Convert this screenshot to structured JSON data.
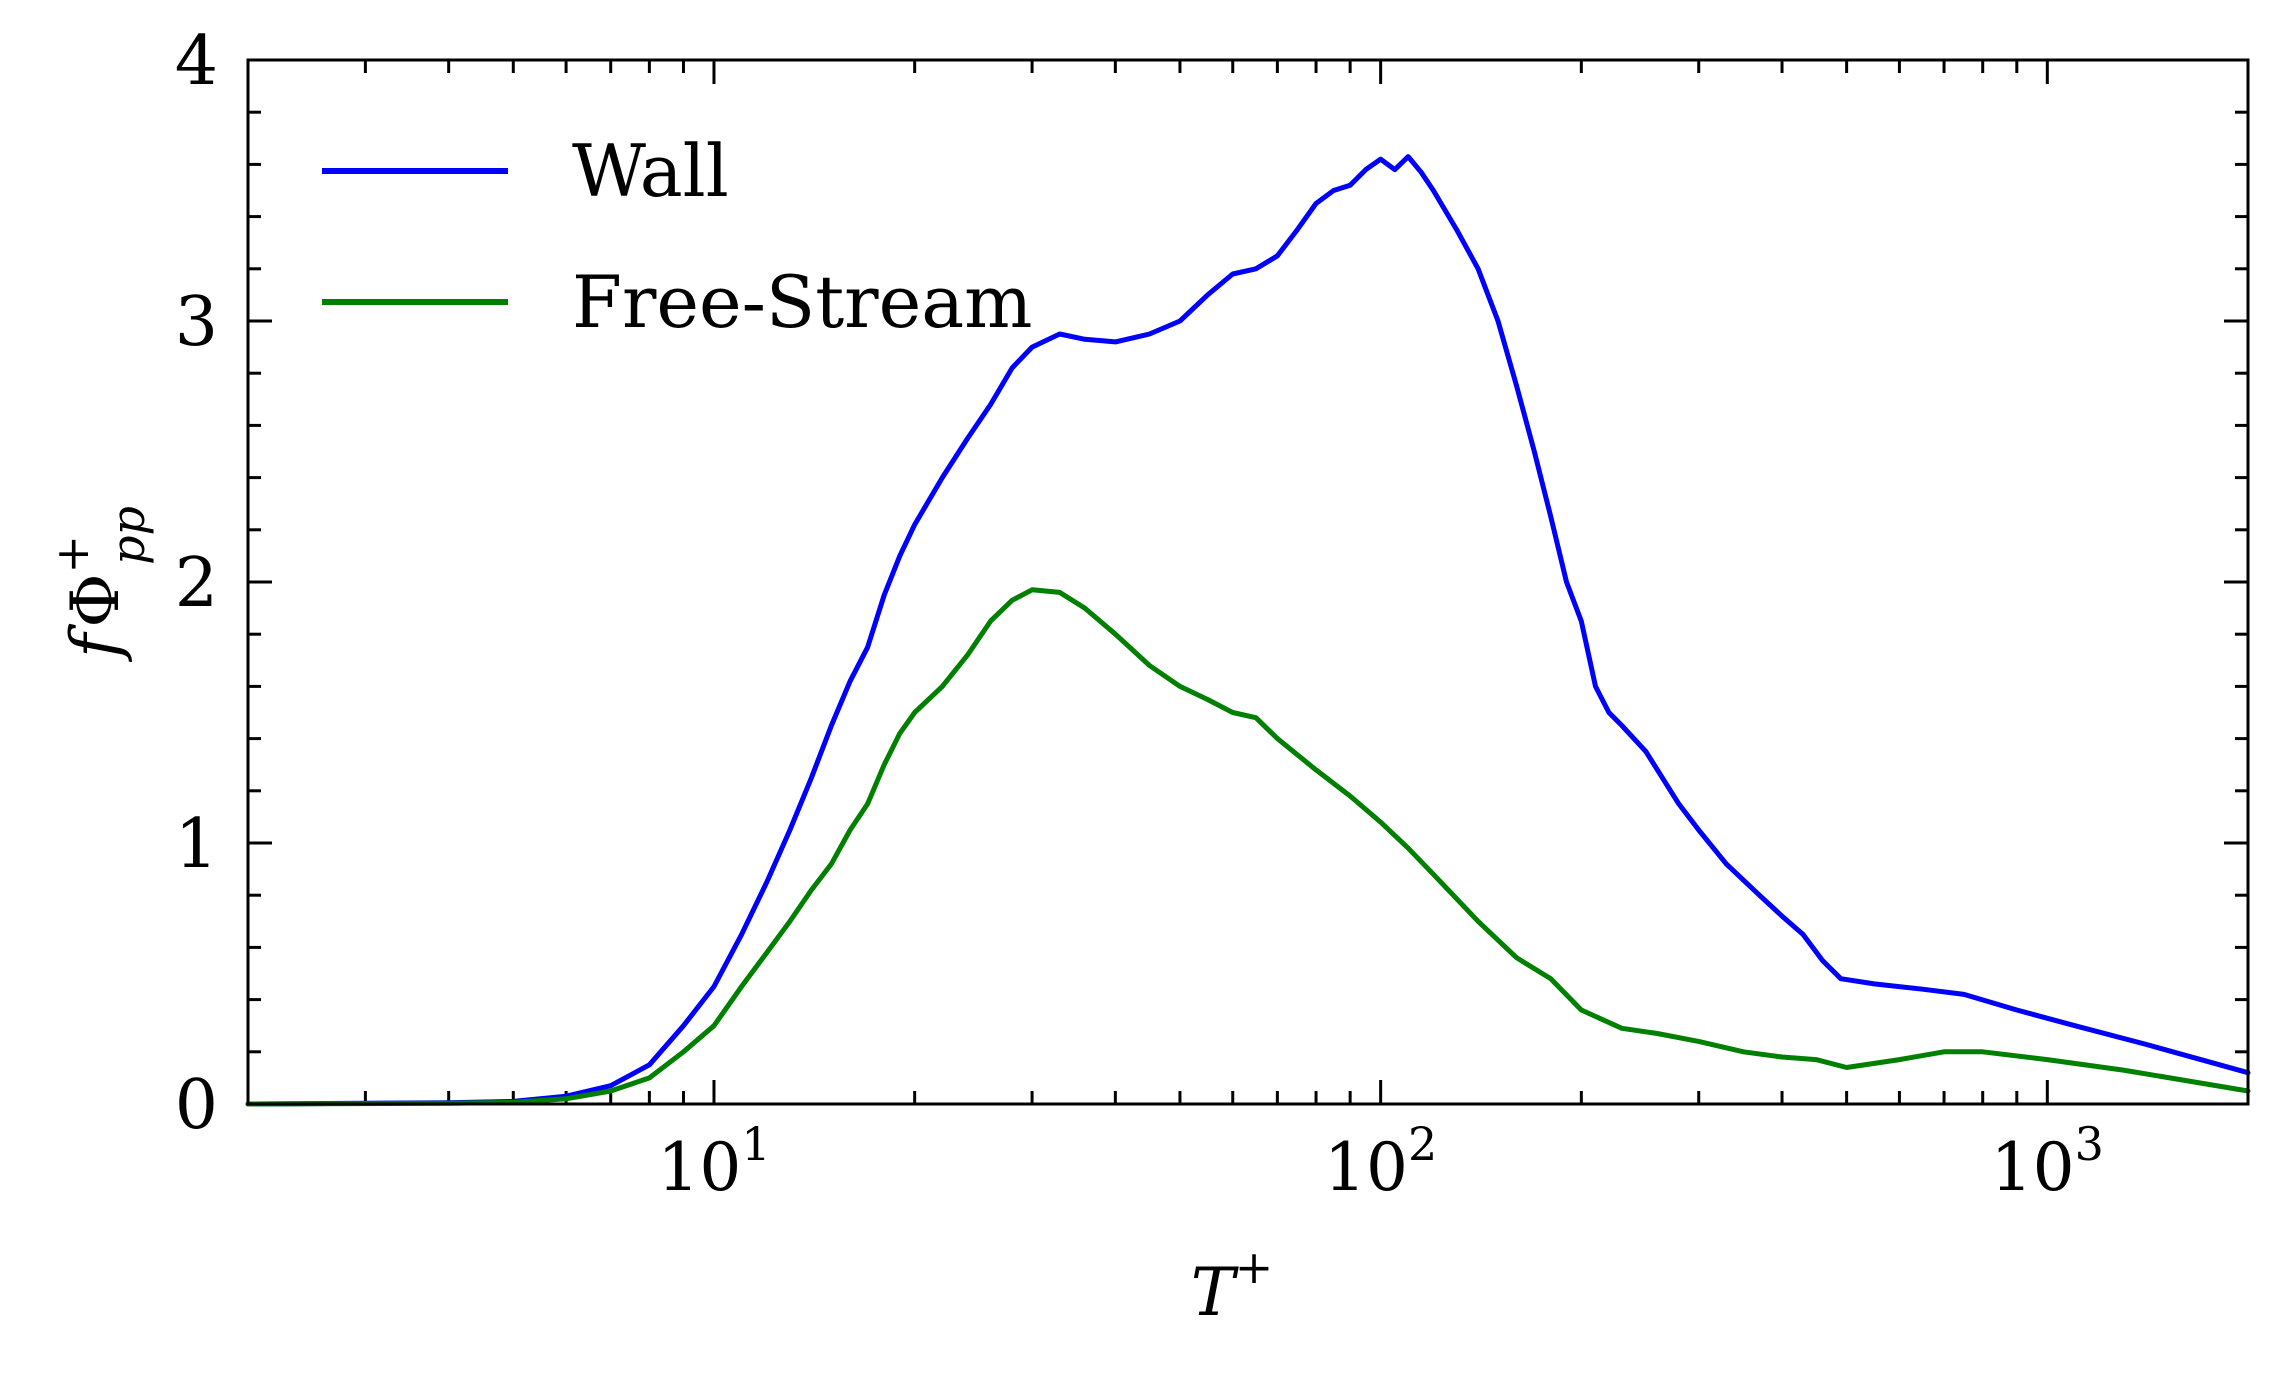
{
  "chart_data": {
    "type": "line",
    "xscale": "log",
    "xlim": [
      2,
      2000
    ],
    "ylim": [
      0,
      4
    ],
    "grid": false,
    "legend_position": "upper-left",
    "x_ticks": [
      {
        "value": 10,
        "base": "10",
        "exp": "1"
      },
      {
        "value": 100,
        "base": "10",
        "exp": "2"
      },
      {
        "value": 1000,
        "base": "10",
        "exp": "3"
      }
    ],
    "y_ticks": [
      0,
      1,
      2,
      3,
      4
    ],
    "xlabel": {
      "main": "T",
      "sup": "+"
    },
    "ylabel": {
      "pre": "f",
      "main": "Φ",
      "sup": "+",
      "sub": "pp"
    },
    "series": [
      {
        "name": "Wall",
        "color": "#0000ff",
        "points": [
          [
            2,
            0
          ],
          [
            4,
            0.005
          ],
          [
            5,
            0.01
          ],
          [
            6,
            0.03
          ],
          [
            7,
            0.07
          ],
          [
            8,
            0.15
          ],
          [
            9,
            0.3
          ],
          [
            10,
            0.45
          ],
          [
            11,
            0.65
          ],
          [
            12,
            0.85
          ],
          [
            13,
            1.05
          ],
          [
            14,
            1.25
          ],
          [
            15,
            1.45
          ],
          [
            16,
            1.62
          ],
          [
            17,
            1.75
          ],
          [
            18,
            1.95
          ],
          [
            19,
            2.1
          ],
          [
            20,
            2.22
          ],
          [
            22,
            2.4
          ],
          [
            24,
            2.55
          ],
          [
            26,
            2.68
          ],
          [
            28,
            2.82
          ],
          [
            30,
            2.9
          ],
          [
            33,
            2.95
          ],
          [
            36,
            2.93
          ],
          [
            40,
            2.92
          ],
          [
            45,
            2.95
          ],
          [
            50,
            3.0
          ],
          [
            55,
            3.1
          ],
          [
            60,
            3.18
          ],
          [
            65,
            3.2
          ],
          [
            70,
            3.25
          ],
          [
            75,
            3.35
          ],
          [
            80,
            3.45
          ],
          [
            85,
            3.5
          ],
          [
            90,
            3.52
          ],
          [
            95,
            3.58
          ],
          [
            100,
            3.62
          ],
          [
            105,
            3.58
          ],
          [
            110,
            3.63
          ],
          [
            115,
            3.57
          ],
          [
            120,
            3.5
          ],
          [
            130,
            3.35
          ],
          [
            140,
            3.2
          ],
          [
            150,
            3.0
          ],
          [
            160,
            2.75
          ],
          [
            170,
            2.5
          ],
          [
            180,
            2.25
          ],
          [
            190,
            2.0
          ],
          [
            200,
            1.85
          ],
          [
            210,
            1.6
          ],
          [
            220,
            1.5
          ],
          [
            230,
            1.45
          ],
          [
            250,
            1.35
          ],
          [
            280,
            1.15
          ],
          [
            300,
            1.05
          ],
          [
            330,
            0.92
          ],
          [
            370,
            0.8
          ],
          [
            400,
            0.72
          ],
          [
            430,
            0.65
          ],
          [
            460,
            0.55
          ],
          [
            490,
            0.48
          ],
          [
            550,
            0.46
          ],
          [
            650,
            0.44
          ],
          [
            750,
            0.42
          ],
          [
            900,
            0.36
          ],
          [
            1100,
            0.3
          ],
          [
            1400,
            0.23
          ],
          [
            2000,
            0.12
          ]
        ]
      },
      {
        "name": "Free-Stream",
        "color": "#008000",
        "points": [
          [
            2,
            0
          ],
          [
            4,
            0.003
          ],
          [
            5,
            0.006
          ],
          [
            6,
            0.02
          ],
          [
            7,
            0.05
          ],
          [
            8,
            0.1
          ],
          [
            9,
            0.2
          ],
          [
            10,
            0.3
          ],
          [
            11,
            0.45
          ],
          [
            12,
            0.58
          ],
          [
            13,
            0.7
          ],
          [
            14,
            0.82
          ],
          [
            15,
            0.92
          ],
          [
            16,
            1.05
          ],
          [
            17,
            1.15
          ],
          [
            18,
            1.3
          ],
          [
            19,
            1.42
          ],
          [
            20,
            1.5
          ],
          [
            22,
            1.6
          ],
          [
            24,
            1.72
          ],
          [
            26,
            1.85
          ],
          [
            28,
            1.93
          ],
          [
            30,
            1.97
          ],
          [
            33,
            1.96
          ],
          [
            36,
            1.9
          ],
          [
            40,
            1.8
          ],
          [
            45,
            1.68
          ],
          [
            50,
            1.6
          ],
          [
            55,
            1.55
          ],
          [
            60,
            1.5
          ],
          [
            65,
            1.48
          ],
          [
            70,
            1.4
          ],
          [
            80,
            1.28
          ],
          [
            90,
            1.18
          ],
          [
            100,
            1.08
          ],
          [
            110,
            0.98
          ],
          [
            120,
            0.88
          ],
          [
            140,
            0.7
          ],
          [
            160,
            0.56
          ],
          [
            180,
            0.48
          ],
          [
            200,
            0.36
          ],
          [
            230,
            0.29
          ],
          [
            260,
            0.27
          ],
          [
            300,
            0.24
          ],
          [
            350,
            0.2
          ],
          [
            400,
            0.18
          ],
          [
            450,
            0.17
          ],
          [
            500,
            0.14
          ],
          [
            600,
            0.17
          ],
          [
            700,
            0.2
          ],
          [
            800,
            0.2
          ],
          [
            1000,
            0.17
          ],
          [
            1300,
            0.13
          ],
          [
            2000,
            0.05
          ]
        ]
      }
    ]
  }
}
